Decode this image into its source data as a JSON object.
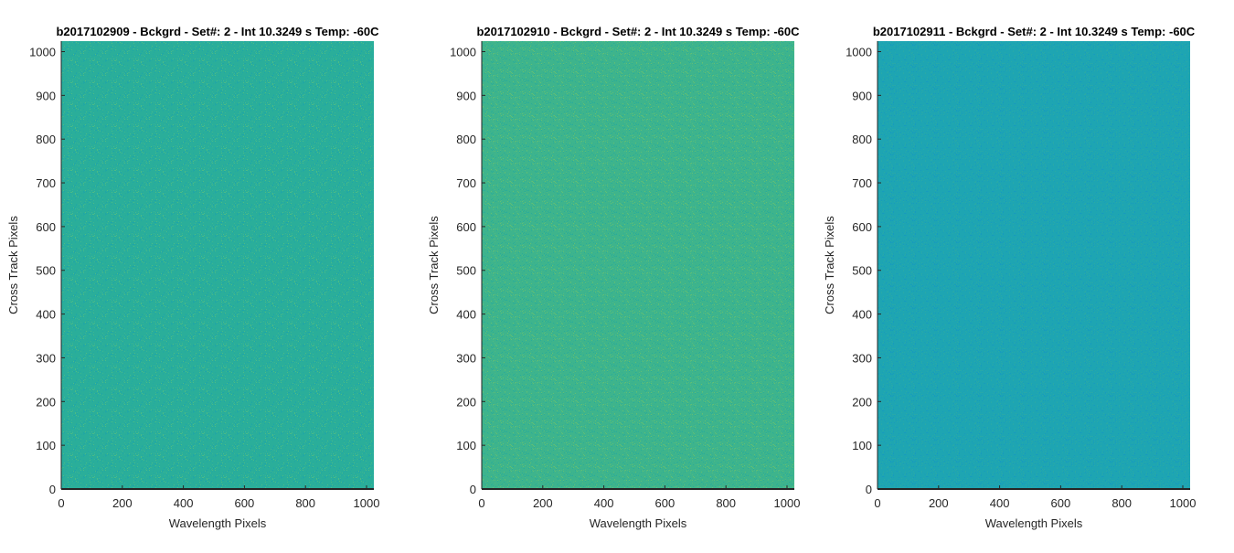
{
  "chart_data": [
    {
      "type": "heatmap",
      "title": "b2017102909 - Bckgrd - Set#: 2 - Int 10.3249 s Temp: -60C",
      "xlabel": "Wavelength Pixels",
      "ylabel": "Cross Track Pixels",
      "xlim": [
        0,
        1024
      ],
      "ylim": [
        0,
        1024
      ],
      "xticks": [
        0,
        200,
        400,
        600,
        800,
        1000
      ],
      "yticks": [
        0,
        100,
        200,
        300,
        400,
        500,
        600,
        700,
        800,
        900,
        1000
      ],
      "base_color": "#2aae9a",
      "speckle_colors": [
        "#4cbb86",
        "#1fa5a8",
        "#3bb492",
        "#24a9a2"
      ]
    },
    {
      "type": "heatmap",
      "title": "b2017102910 - Bckgrd - Set#: 2 - Int 10.3249 s Temp: -60C",
      "xlabel": "Wavelength Pixels",
      "ylabel": "Cross Track Pixels",
      "xlim": [
        0,
        1024
      ],
      "ylim": [
        0,
        1024
      ],
      "xticks": [
        0,
        200,
        400,
        600,
        800,
        1000
      ],
      "yticks": [
        0,
        100,
        200,
        300,
        400,
        500,
        600,
        700,
        800,
        900,
        1000
      ],
      "base_color": "#3eb48c",
      "speckle_colors": [
        "#63bf72",
        "#2aac9a",
        "#52ba80",
        "#35b094"
      ]
    },
    {
      "type": "heatmap",
      "title": "b2017102911 - Bckgrd - Set#: 2 - Int 10.3249 s Temp: -60C",
      "xlabel": "Wavelength Pixels",
      "ylabel": "Cross Track Pixels",
      "xlim": [
        0,
        1024
      ],
      "ylim": [
        0,
        1024
      ],
      "xticks": [
        0,
        200,
        400,
        600,
        800,
        1000
      ],
      "yticks": [
        0,
        100,
        200,
        300,
        400,
        500,
        600,
        700,
        800,
        900,
        1000
      ],
      "base_color": "#1ea5b2",
      "speckle_colors": [
        "#2aa9a6",
        "#189bbd",
        "#26a8ab",
        "#1aa0b8"
      ]
    }
  ]
}
